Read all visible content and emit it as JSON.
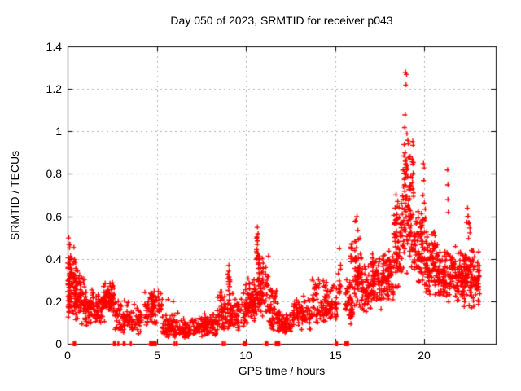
{
  "chart_data": {
    "type": "scatter",
    "title": "Day 050 of 2023, SRMTID for receiver p043",
    "xlabel": "GPS time / hours",
    "ylabel": "SRMTID / TECUs",
    "xlim": [
      0,
      24
    ],
    "ylim": [
      0,
      1.4
    ],
    "xticks": [
      0,
      5,
      10,
      15,
      20
    ],
    "xtick_labels": [
      "0",
      "5",
      "10",
      "15",
      "20"
    ],
    "yticks": [
      0,
      0.2,
      0.4,
      0.6,
      0.8,
      1.0,
      1.2,
      1.4
    ],
    "ytick_labels": [
      "0",
      "0.2",
      "0.4",
      "0.6",
      "0.8",
      "1",
      "1.2",
      "1.4"
    ],
    "grid": true,
    "grid_style": "dashed",
    "legend": "none",
    "marker": "plus",
    "marker_color": "#ff0000",
    "grid_color": "#b0b0b0",
    "axis_color": "#000000",
    "background": "#ffffff",
    "clusters_key": [
      "x_start",
      "x_end",
      "y_min",
      "y_max",
      "y_mode",
      "count"
    ],
    "clusters": [
      [
        0.0,
        0.12,
        0.08,
        0.5,
        0.25,
        30
      ],
      [
        0.05,
        0.45,
        0.12,
        0.47,
        0.27,
        55
      ],
      [
        0.35,
        0.95,
        0.08,
        0.36,
        0.18,
        70
      ],
      [
        0.95,
        1.55,
        0.07,
        0.28,
        0.15,
        55
      ],
      [
        1.55,
        2.05,
        0.09,
        0.26,
        0.16,
        45
      ],
      [
        2.0,
        2.6,
        0.13,
        0.3,
        0.22,
        75
      ],
      [
        2.6,
        3.3,
        0.05,
        0.22,
        0.12,
        50
      ],
      [
        3.3,
        4.2,
        0.04,
        0.22,
        0.1,
        55
      ],
      [
        4.3,
        5.3,
        0.07,
        0.28,
        0.16,
        85
      ],
      [
        5.3,
        6.2,
        0.02,
        0.16,
        0.07,
        60
      ],
      [
        6.2,
        7.3,
        0.02,
        0.13,
        0.06,
        75
      ],
      [
        7.3,
        8.4,
        0.03,
        0.16,
        0.08,
        85
      ],
      [
        8.4,
        9.15,
        0.05,
        0.26,
        0.13,
        65
      ],
      [
        8.95,
        9.1,
        0.22,
        0.37,
        0.3,
        10
      ],
      [
        9.15,
        9.95,
        0.06,
        0.26,
        0.13,
        55
      ],
      [
        9.95,
        10.55,
        0.08,
        0.33,
        0.18,
        75
      ],
      [
        10.55,
        10.8,
        0.3,
        0.56,
        0.42,
        14
      ],
      [
        10.55,
        11.25,
        0.1,
        0.43,
        0.22,
        75
      ],
      [
        11.25,
        11.75,
        0.05,
        0.3,
        0.14,
        45
      ],
      [
        11.75,
        12.65,
        0.04,
        0.17,
        0.09,
        70
      ],
      [
        12.65,
        13.65,
        0.06,
        0.24,
        0.13,
        70
      ],
      [
        13.65,
        14.65,
        0.09,
        0.33,
        0.18,
        80
      ],
      [
        14.65,
        15.1,
        0.1,
        0.3,
        0.17,
        40
      ],
      [
        15.15,
        15.3,
        0.1,
        0.45,
        0.28,
        12
      ],
      [
        15.55,
        16.0,
        0.08,
        0.35,
        0.18,
        50
      ],
      [
        15.8,
        15.95,
        0.35,
        0.52,
        0.44,
        9
      ],
      [
        16.05,
        16.45,
        0.15,
        0.6,
        0.32,
        60
      ],
      [
        16.45,
        17.05,
        0.12,
        0.4,
        0.24,
        60
      ],
      [
        17.05,
        17.45,
        0.18,
        0.47,
        0.3,
        50
      ],
      [
        17.45,
        18.25,
        0.15,
        0.46,
        0.28,
        90
      ],
      [
        18.25,
        18.75,
        0.25,
        0.72,
        0.42,
        70
      ],
      [
        18.75,
        19.4,
        0.3,
        1.0,
        0.6,
        110
      ],
      [
        19.4,
        20.05,
        0.25,
        0.68,
        0.42,
        80
      ],
      [
        20.05,
        20.75,
        0.22,
        0.56,
        0.35,
        90
      ],
      [
        20.75,
        21.55,
        0.18,
        0.46,
        0.3,
        80
      ],
      [
        21.55,
        22.35,
        0.2,
        0.47,
        0.32,
        90
      ],
      [
        22.35,
        22.55,
        0.48,
        0.64,
        0.56,
        8
      ],
      [
        22.2,
        23.1,
        0.15,
        0.47,
        0.3,
        110
      ]
    ],
    "outlier_points": [
      [
        18.92,
        1.28
      ],
      [
        18.98,
        1.27
      ],
      [
        18.95,
        1.22
      ],
      [
        18.9,
        1.08
      ],
      [
        18.88,
        1.02
      ],
      [
        19.0,
        0.99
      ],
      [
        19.05,
        0.96
      ],
      [
        18.85,
        0.94
      ],
      [
        19.93,
        0.85
      ],
      [
        19.97,
        0.83
      ],
      [
        19.95,
        0.77
      ],
      [
        19.9,
        0.7
      ],
      [
        21.28,
        0.82
      ],
      [
        21.3,
        0.75
      ],
      [
        21.3,
        0.68
      ],
      [
        21.32,
        0.62
      ],
      [
        22.4,
        0.64
      ],
      [
        22.42,
        0.6
      ],
      [
        5.62,
        0.21
      ],
      [
        5.9,
        0.2
      ],
      [
        0.05,
        0.5
      ],
      [
        0.08,
        0.47
      ],
      [
        10.62,
        0.55
      ],
      [
        10.66,
        0.52
      ],
      [
        16.2,
        0.6
      ],
      [
        16.15,
        0.58
      ],
      [
        9.02,
        0.37
      ],
      [
        15.22,
        0.45
      ]
    ],
    "zero_points_x": [
      0.3,
      0.38,
      2.55,
      2.62,
      2.8,
      3.1,
      3.15,
      3.5,
      4.58,
      4.66,
      4.74,
      4.82,
      4.9,
      5.95,
      6.08,
      8.65,
      8.78,
      9.82,
      9.9,
      9.98,
      11.05,
      11.15,
      11.62,
      11.72,
      11.82,
      15.0,
      15.06,
      15.52,
      15.6,
      15.68
    ]
  }
}
